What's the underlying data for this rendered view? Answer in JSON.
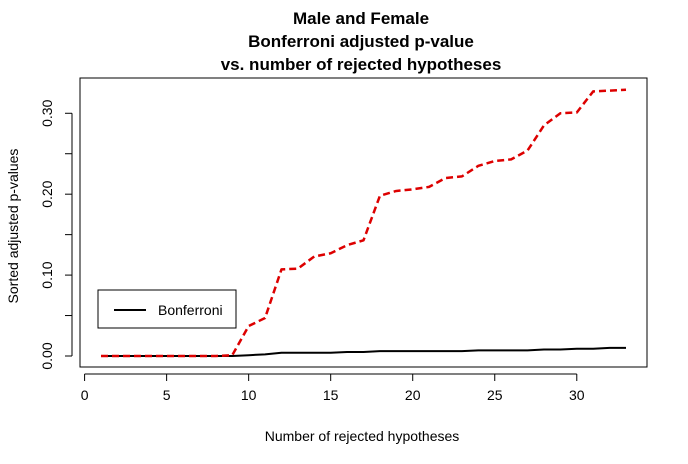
{
  "chart_data": {
    "type": "line",
    "title_lines": [
      "Male and Female",
      "Bonferroni adjusted p-value",
      "vs. number of rejected hypotheses"
    ],
    "xlabel": "Number of rejected hypotheses",
    "ylabel": "Sorted adjusted p-values",
    "xlim": [
      1,
      33
    ],
    "ylim": [
      0,
      0.33
    ],
    "x_ticks": [
      0,
      5,
      10,
      15,
      20,
      25,
      30
    ],
    "x_tick_labels": [
      "0",
      "5",
      "10",
      "15",
      "20",
      "25",
      "30"
    ],
    "y_ticks": [
      0.0,
      0.1,
      0.2,
      0.3
    ],
    "y_tick_labels": [
      "0.00",
      "0.10",
      "0.20",
      "0.30"
    ],
    "y_minor_ticks": [
      0.05,
      0.15,
      0.25
    ],
    "x": [
      1,
      2,
      3,
      4,
      5,
      6,
      7,
      8,
      9,
      10,
      11,
      12,
      13,
      14,
      15,
      16,
      17,
      18,
      19,
      20,
      21,
      22,
      23,
      24,
      25,
      26,
      27,
      28,
      29,
      30,
      31,
      32,
      33
    ],
    "series": [
      {
        "name": "Bonferroni",
        "color": "#000000",
        "style": "solid",
        "values": [
          0,
          0,
          0,
          0,
          0,
          0,
          0,
          0,
          0,
          0.001,
          0.002,
          0.004,
          0.004,
          0.004,
          0.004,
          0.005,
          0.005,
          0.006,
          0.006,
          0.006,
          0.006,
          0.006,
          0.006,
          0.007,
          0.007,
          0.007,
          0.007,
          0.008,
          0.008,
          0.009,
          0.009,
          0.01,
          0.01
        ]
      },
      {
        "color": "#dd0000",
        "style": "dashed",
        "values": [
          0,
          0,
          0,
          0,
          0,
          0,
          0,
          0,
          0.001,
          0.037,
          0.047,
          0.107,
          0.108,
          0.123,
          0.127,
          0.137,
          0.143,
          0.198,
          0.204,
          0.206,
          0.209,
          0.22,
          0.222,
          0.235,
          0.241,
          0.243,
          0.254,
          0.285,
          0.3,
          0.301,
          0.327,
          0.328,
          0.329
        ]
      }
    ],
    "legend": {
      "position": "bottom-left",
      "entries": [
        "Bonferroni"
      ]
    }
  }
}
